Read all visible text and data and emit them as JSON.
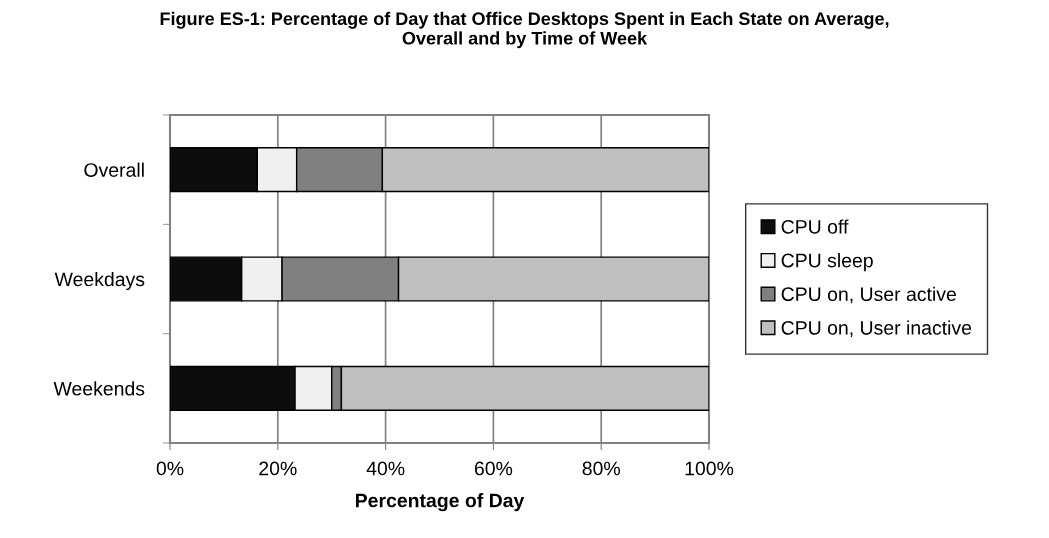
{
  "chart_data": {
    "type": "bar",
    "orientation": "horizontal",
    "stacked": true,
    "title": "Figure ES-1: Percentage of Day that Office Desktops Spent in Each State on Average,\nOverall and by Time of Week",
    "xlabel": "Percentage of Day",
    "categories": [
      "Overall",
      "Weekdays",
      "Weekends"
    ],
    "series": [
      {
        "name": "CPU off",
        "color": "#0d0d0d",
        "values": [
          16.2,
          13.3,
          23.2
        ]
      },
      {
        "name": "CPU sleep",
        "color": "#f0f0f0",
        "values": [
          7.3,
          7.5,
          6.8
        ]
      },
      {
        "name": "CPU on, User active",
        "color": "#808080",
        "values": [
          15.9,
          21.6,
          1.8
        ]
      },
      {
        "name": "CPU on, User inactive",
        "color": "#bfbfbf",
        "values": [
          60.6,
          57.6,
          68.2
        ]
      }
    ],
    "xlim": [
      0,
      100
    ],
    "xticks": [
      {
        "value": 0,
        "label": "0%"
      },
      {
        "value": 20,
        "label": "20%"
      },
      {
        "value": 40,
        "label": "40%"
      },
      {
        "value": 60,
        "label": "60%"
      },
      {
        "value": 80,
        "label": "80%"
      },
      {
        "value": 100,
        "label": "100%"
      }
    ],
    "grid": "x",
    "legend": "right"
  }
}
